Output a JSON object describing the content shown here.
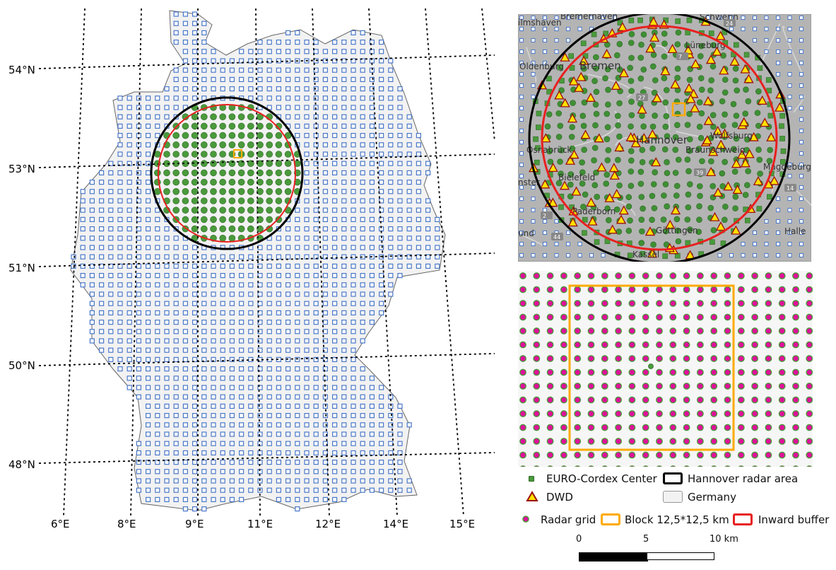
{
  "left_map": {
    "lat_labels": [
      "54°N",
      "53°N",
      "51°N",
      "50°N",
      "48°N"
    ],
    "lon_labels": [
      "6°E",
      "8°E",
      "9°E",
      "11°E",
      "12°E",
      "14°E",
      "15°E"
    ]
  },
  "inset_map": {
    "city_labels": [
      "Bremerhaven",
      "Schwerin",
      "ilmshaven",
      "Oldenburg",
      "Bremen",
      "Lüneburg",
      "Hannover",
      "Wolfsburg",
      "Braunschweig",
      "Osnabrück",
      "Magdeburg",
      "Bielefeld",
      "nster",
      "Paderborn",
      "Göttingen",
      "Halle",
      "und",
      "Kassel"
    ],
    "road_labels": [
      "24",
      "7",
      "27",
      "39",
      "14",
      "44",
      "2"
    ]
  },
  "legend": {
    "euro_cordex": "EURO-Cordex Center",
    "dwd": "DWD",
    "radar_grid": "Radar grid",
    "hannover_area": "Hannover radar area",
    "germany": "Germany",
    "block": "Block 12,5*12,5 km",
    "inward_buffer": "Inward buffer"
  },
  "scale_bar": {
    "ticks": [
      "0",
      "5",
      "10 km"
    ]
  },
  "colors": {
    "euro_cordex": "#4a9a3c",
    "dwd_fill": "#ffe000",
    "dwd_stroke": "#9a1010",
    "radar_fill": "#e0109a",
    "grid_square": "#4a78c8",
    "hannover": "#000000",
    "block": "#ffaa00",
    "buffer": "#e82020",
    "germany_fill": "#f2f2f2"
  }
}
